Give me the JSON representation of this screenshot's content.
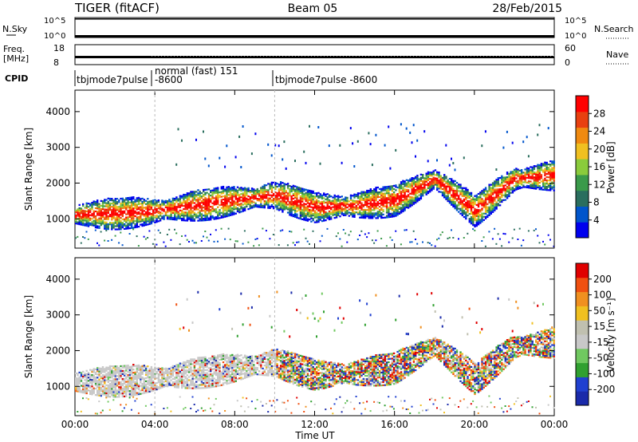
{
  "header": {
    "left": "TIGER (fitACF)",
    "center": "Beam 05",
    "right": "28/Feb/2015"
  },
  "strips": {
    "nsky": {
      "label": "N.Sky",
      "ticks": [
        "10^5",
        "10^0"
      ],
      "right_label": "N.Search",
      "right_ticks": [
        "10^5",
        "10^0"
      ]
    },
    "freq": {
      "label_line1": "Freq.",
      "label_line2": "[MHz]",
      "ticks": [
        "18",
        "8"
      ],
      "right_label": "Nave",
      "right_ticks": [
        "60",
        "0"
      ]
    },
    "cpid": {
      "label": "CPID",
      "segments": [
        {
          "start_hr": 0,
          "name": "tbjmode7pulse"
        },
        {
          "start_hr": 4,
          "name": "normal (fast) 151",
          "sub": "-8600"
        },
        {
          "start_hr": 10,
          "name": "tbjmode7pulse  -8600"
        }
      ]
    }
  },
  "chart_data": [
    {
      "type": "heatmap",
      "title": "",
      "xlabel": "",
      "ylabel": "Slant Range [km]",
      "xlim_hours": [
        0,
        24
      ],
      "ylim_km": [
        180,
        4600
      ],
      "yticks": [
        1000,
        2000,
        3000,
        4000
      ],
      "colorbar": {
        "label": "Power [dB]",
        "ticks": [
          "4",
          "8",
          "12",
          "16",
          "20",
          "24",
          "28"
        ]
      },
      "series_points": [
        {
          "x_hr": 0.0,
          "y_km": 1100
        },
        {
          "x_hr": 2.0,
          "y_km": 1130
        },
        {
          "x_hr": 4.0,
          "y_km": 1200
        },
        {
          "x_hr": 6.0,
          "y_km": 1350
        },
        {
          "x_hr": 8.0,
          "y_km": 1500
        },
        {
          "x_hr": 10.0,
          "y_km": 1650
        },
        {
          "x_hr": 12.0,
          "y_km": 1300
        },
        {
          "x_hr": 14.0,
          "y_km": 1350
        },
        {
          "x_hr": 16.0,
          "y_km": 1500
        },
        {
          "x_hr": 18.0,
          "y_km": 2100
        },
        {
          "x_hr": 20.0,
          "y_km": 1200
        },
        {
          "x_hr": 22.0,
          "y_km": 2100
        },
        {
          "x_hr": 24.0,
          "y_km": 2200
        }
      ]
    },
    {
      "type": "heatmap",
      "title": "",
      "xlabel": "Time UT",
      "ylabel": "Slant Range [km]",
      "xlim_hours": [
        0,
        24
      ],
      "ylim_km": [
        180,
        4600
      ],
      "yticks": [
        1000,
        2000,
        3000,
        4000
      ],
      "xticks": [
        "00:00",
        "04:00",
        "08:00",
        "12:00",
        "16:00",
        "20:00",
        "00:00"
      ],
      "colorbar": {
        "label": "Velocity [m s⁻¹]",
        "ticks": [
          "200",
          "100",
          "50",
          "15",
          "-15",
          "-50",
          "-100",
          "-200"
        ]
      }
    }
  ],
  "colors": {
    "power_scale": [
      "#0000ee",
      "#0055cc",
      "#2a6e5e",
      "#3a9a4a",
      "#8acb3c",
      "#f0c020",
      "#f08a10",
      "#e84010",
      "#ff0000"
    ],
    "velocity_scale": [
      "#1a2aaa",
      "#2040d0",
      "#30a030",
      "#70c860",
      "#c8c8c8",
      "#c0c0b0",
      "#f0c020",
      "#f09020",
      "#f05010",
      "#e00000"
    ]
  }
}
